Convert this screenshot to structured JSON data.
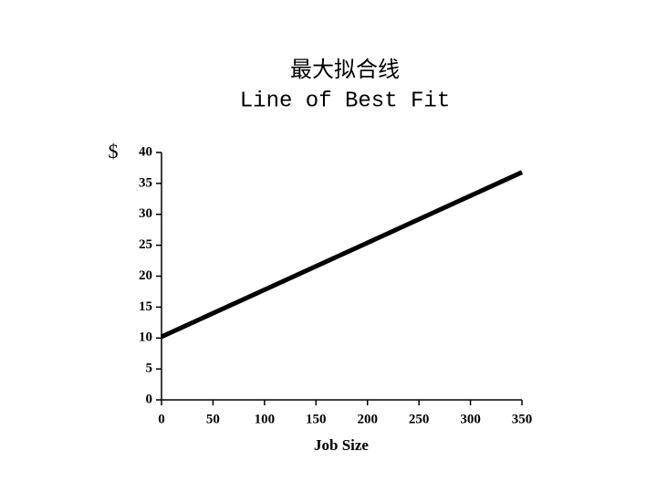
{
  "chart_data": {
    "type": "line",
    "title": "最大拟合线",
    "subtitle": "Line of Best Fit",
    "y_label": "$",
    "x_label": "Job Size",
    "x": [
      0,
      350
    ],
    "series": [
      {
        "color": "#000000",
        "values": [
          10.2,
          36.8
        ]
      }
    ],
    "xlim": [
      0,
      350
    ],
    "xticks": [
      0,
      50,
      100,
      150,
      200,
      250,
      300,
      350
    ],
    "ylim": [
      0,
      40
    ],
    "yticks": [
      0,
      5,
      10,
      15,
      20,
      25,
      30,
      35,
      40
    ],
    "grid": false
  }
}
